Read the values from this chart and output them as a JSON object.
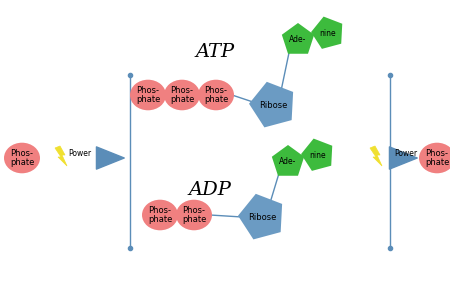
{
  "bg_color": "#ffffff",
  "phosphate_color": "#f08080",
  "ribose_color": "#6b9bc3",
  "adenine_color": "#3dbb3d",
  "arrow_color": "#5b8db8",
  "line_color": "#5b8db8",
  "lightning_color": "#f0e030",
  "atp_label": "ATP",
  "adp_label": "ADP",
  "phosphate_label": "Phos-\nphate",
  "ribose_label": "Ribose",
  "adenine_left_label": "Ade-",
  "adenine_right_label": "nine",
  "power_label": "Power",
  "title_fontsize": 14,
  "label_fontsize": 6.0,
  "fig_width": 4.5,
  "fig_height": 2.9,
  "dpi": 100,
  "xlim": [
    0,
    450
  ],
  "ylim": [
    0,
    290
  ]
}
